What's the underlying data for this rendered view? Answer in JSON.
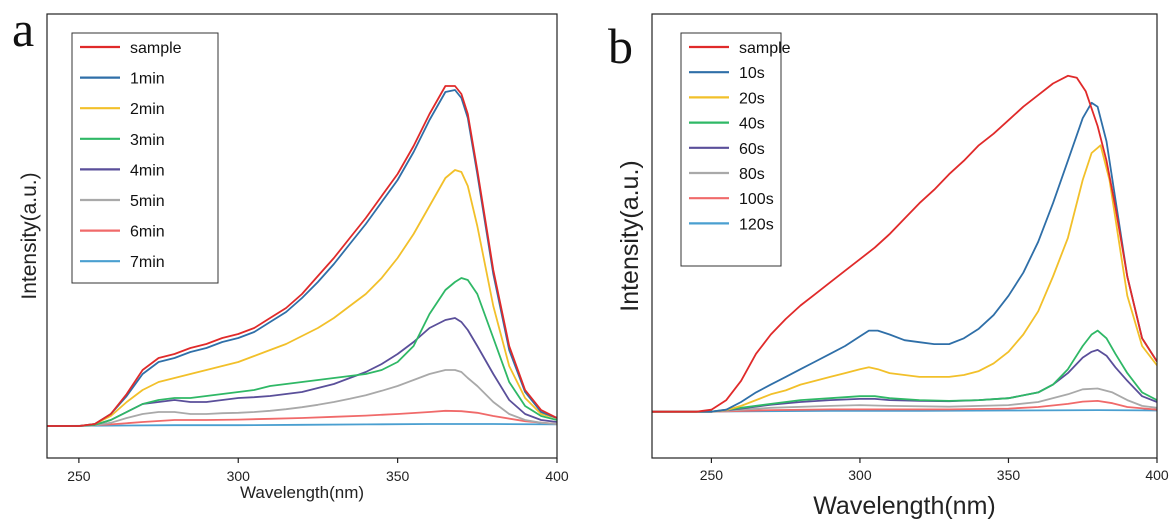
{
  "chart_data": [
    {
      "type": "line",
      "panel_label": "a",
      "xlabel": "Wavelength(nm)",
      "ylabel": "Intensity(a.u.)",
      "xlim": [
        240,
        400
      ],
      "xticks": [
        250,
        300,
        350,
        400
      ],
      "y_ticks_shown": false,
      "ylim": [
        -0.08,
        1.03
      ],
      "legend_position": "top-left",
      "series": [
        {
          "name": "sample",
          "color": "#e02a2a",
          "x": [
            240,
            250,
            255,
            260,
            265,
            270,
            275,
            280,
            285,
            290,
            295,
            300,
            305,
            310,
            315,
            320,
            325,
            330,
            335,
            340,
            345,
            350,
            355,
            360,
            365,
            368,
            370,
            372,
            375,
            380,
            385,
            390,
            395,
            400
          ],
          "y": [
            0,
            0,
            0.005,
            0.03,
            0.08,
            0.14,
            0.17,
            0.18,
            0.195,
            0.205,
            0.22,
            0.23,
            0.245,
            0.27,
            0.295,
            0.33,
            0.375,
            0.42,
            0.47,
            0.52,
            0.575,
            0.63,
            0.7,
            0.78,
            0.85,
            0.85,
            0.83,
            0.78,
            0.64,
            0.39,
            0.2,
            0.09,
            0.04,
            0.02
          ]
        },
        {
          "name": "1min",
          "color": "#2f6fa8",
          "x": [
            240,
            250,
            255,
            260,
            265,
            270,
            275,
            280,
            285,
            290,
            295,
            300,
            305,
            310,
            315,
            320,
            325,
            330,
            335,
            340,
            345,
            350,
            355,
            360,
            365,
            368,
            370,
            372,
            375,
            380,
            385,
            390,
            395,
            400
          ],
          "y": [
            0,
            0,
            0.005,
            0.03,
            0.075,
            0.13,
            0.16,
            0.17,
            0.185,
            0.195,
            0.21,
            0.22,
            0.235,
            0.26,
            0.285,
            0.32,
            0.36,
            0.405,
            0.455,
            0.505,
            0.56,
            0.615,
            0.685,
            0.765,
            0.835,
            0.84,
            0.82,
            0.77,
            0.63,
            0.38,
            0.19,
            0.085,
            0.035,
            0.02
          ]
        },
        {
          "name": "2min",
          "color": "#f2c02a",
          "x": [
            240,
            250,
            255,
            260,
            265,
            270,
            275,
            280,
            285,
            290,
            295,
            300,
            305,
            310,
            315,
            320,
            325,
            330,
            335,
            340,
            345,
            350,
            355,
            360,
            365,
            368,
            370,
            372,
            375,
            380,
            385,
            390,
            395,
            400
          ],
          "y": [
            0,
            0,
            0.005,
            0.025,
            0.06,
            0.09,
            0.11,
            0.12,
            0.13,
            0.14,
            0.15,
            0.16,
            0.175,
            0.19,
            0.205,
            0.225,
            0.245,
            0.27,
            0.3,
            0.33,
            0.37,
            0.42,
            0.48,
            0.55,
            0.62,
            0.64,
            0.635,
            0.6,
            0.5,
            0.3,
            0.15,
            0.07,
            0.03,
            0.02
          ]
        },
        {
          "name": "3min",
          "color": "#2fb866",
          "x": [
            240,
            250,
            255,
            260,
            265,
            270,
            275,
            280,
            285,
            290,
            295,
            300,
            305,
            310,
            315,
            320,
            325,
            330,
            335,
            340,
            345,
            350,
            355,
            360,
            365,
            368,
            370,
            372,
            375,
            380,
            385,
            390,
            395,
            400
          ],
          "y": [
            0,
            0,
            0.003,
            0.015,
            0.035,
            0.055,
            0.065,
            0.07,
            0.07,
            0.075,
            0.08,
            0.085,
            0.09,
            0.1,
            0.105,
            0.11,
            0.115,
            0.12,
            0.125,
            0.13,
            0.14,
            0.16,
            0.2,
            0.28,
            0.34,
            0.36,
            0.37,
            0.365,
            0.33,
            0.22,
            0.11,
            0.05,
            0.025,
            0.015
          ]
        },
        {
          "name": "4min",
          "color": "#5a4f9a",
          "x": [
            240,
            250,
            255,
            260,
            265,
            270,
            275,
            280,
            285,
            290,
            295,
            300,
            305,
            310,
            315,
            320,
            325,
            330,
            335,
            340,
            345,
            350,
            355,
            360,
            365,
            368,
            370,
            372,
            375,
            380,
            385,
            390,
            395,
            400
          ],
          "y": [
            0,
            0,
            0.003,
            0.015,
            0.035,
            0.055,
            0.06,
            0.065,
            0.06,
            0.06,
            0.065,
            0.07,
            0.072,
            0.075,
            0.08,
            0.085,
            0.095,
            0.105,
            0.12,
            0.135,
            0.155,
            0.18,
            0.21,
            0.245,
            0.265,
            0.27,
            0.26,
            0.24,
            0.2,
            0.13,
            0.065,
            0.03,
            0.015,
            0.01
          ]
        },
        {
          "name": "5min",
          "color": "#a9a9a9",
          "x": [
            240,
            250,
            255,
            260,
            265,
            270,
            275,
            280,
            285,
            290,
            295,
            300,
            305,
            310,
            315,
            320,
            325,
            330,
            335,
            340,
            345,
            350,
            355,
            360,
            365,
            368,
            370,
            372,
            375,
            380,
            385,
            390,
            395,
            400
          ],
          "y": [
            0,
            0,
            0.002,
            0.008,
            0.02,
            0.03,
            0.035,
            0.035,
            0.03,
            0.03,
            0.032,
            0.033,
            0.035,
            0.038,
            0.042,
            0.047,
            0.053,
            0.06,
            0.068,
            0.077,
            0.088,
            0.1,
            0.115,
            0.13,
            0.14,
            0.14,
            0.135,
            0.12,
            0.1,
            0.06,
            0.03,
            0.015,
            0.008,
            0.005
          ]
        },
        {
          "name": "6min",
          "color": "#f06a6a",
          "x": [
            240,
            250,
            260,
            270,
            280,
            290,
            300,
            310,
            320,
            330,
            340,
            350,
            360,
            365,
            370,
            375,
            380,
            390,
            400
          ],
          "y": [
            0,
            0,
            0.004,
            0.01,
            0.015,
            0.015,
            0.016,
            0.018,
            0.02,
            0.023,
            0.026,
            0.03,
            0.035,
            0.038,
            0.037,
            0.033,
            0.025,
            0.012,
            0.005
          ]
        },
        {
          "name": "7min",
          "color": "#4a9fd0",
          "x": [
            240,
            260,
            280,
            300,
            320,
            340,
            360,
            380,
            400
          ],
          "y": [
            0,
            0.001,
            0.002,
            0.002,
            0.003,
            0.004,
            0.005,
            0.005,
            0.004
          ]
        }
      ]
    },
    {
      "type": "line",
      "panel_label": "b",
      "xlabel": "Wavelength(nm)",
      "ylabel": "Intensity(a.u.)",
      "xlim": [
        230,
        400
      ],
      "xticks": [
        250,
        300,
        350,
        400
      ],
      "y_ticks_shown": false,
      "ylim": [
        -0.12,
        1.03
      ],
      "legend_position": "top-left",
      "series": [
        {
          "name": "sample",
          "color": "#e02a2a",
          "x": [
            230,
            245,
            250,
            255,
            260,
            265,
            270,
            275,
            280,
            285,
            290,
            295,
            300,
            305,
            310,
            315,
            320,
            325,
            330,
            335,
            340,
            345,
            350,
            355,
            360,
            365,
            370,
            373,
            376,
            380,
            383,
            386,
            390,
            395,
            400
          ],
          "y": [
            0,
            0,
            0.005,
            0.03,
            0.08,
            0.15,
            0.2,
            0.24,
            0.275,
            0.305,
            0.335,
            0.365,
            0.395,
            0.425,
            0.46,
            0.5,
            0.54,
            0.575,
            0.615,
            0.65,
            0.69,
            0.72,
            0.755,
            0.79,
            0.82,
            0.85,
            0.87,
            0.865,
            0.83,
            0.74,
            0.65,
            0.53,
            0.35,
            0.19,
            0.13
          ]
        },
        {
          "name": "10s",
          "color": "#2f6fa8",
          "x": [
            230,
            250,
            255,
            260,
            265,
            270,
            275,
            280,
            285,
            290,
            295,
            300,
            303,
            306,
            310,
            315,
            320,
            325,
            330,
            335,
            340,
            345,
            350,
            355,
            360,
            365,
            370,
            375,
            378,
            380,
            383,
            386,
            390,
            395,
            400
          ],
          "y": [
            0,
            0,
            0.005,
            0.025,
            0.05,
            0.07,
            0.09,
            0.11,
            0.13,
            0.15,
            0.17,
            0.195,
            0.21,
            0.21,
            0.2,
            0.185,
            0.18,
            0.175,
            0.175,
            0.19,
            0.215,
            0.25,
            0.3,
            0.36,
            0.44,
            0.54,
            0.65,
            0.76,
            0.8,
            0.79,
            0.7,
            0.55,
            0.35,
            0.19,
            0.13
          ]
        },
        {
          "name": "20s",
          "color": "#f2c02a",
          "x": [
            230,
            250,
            255,
            260,
            265,
            270,
            275,
            280,
            285,
            290,
            295,
            300,
            303,
            306,
            310,
            315,
            320,
            325,
            330,
            335,
            340,
            345,
            350,
            355,
            360,
            365,
            370,
            375,
            378,
            381,
            384,
            387,
            390,
            395,
            400
          ],
          "y": [
            0,
            0,
            0.004,
            0.015,
            0.03,
            0.045,
            0.055,
            0.07,
            0.08,
            0.09,
            0.1,
            0.11,
            0.115,
            0.11,
            0.1,
            0.095,
            0.09,
            0.09,
            0.09,
            0.095,
            0.105,
            0.125,
            0.155,
            0.2,
            0.26,
            0.35,
            0.45,
            0.6,
            0.67,
            0.69,
            0.6,
            0.45,
            0.3,
            0.17,
            0.12
          ]
        },
        {
          "name": "40s",
          "color": "#2fb866",
          "x": [
            230,
            250,
            260,
            270,
            280,
            290,
            300,
            305,
            310,
            320,
            330,
            340,
            350,
            360,
            365,
            370,
            375,
            378,
            380,
            383,
            386,
            390,
            395,
            400
          ],
          "y": [
            0,
            0,
            0.01,
            0.02,
            0.03,
            0.035,
            0.04,
            0.04,
            0.035,
            0.03,
            0.028,
            0.03,
            0.035,
            0.05,
            0.07,
            0.11,
            0.17,
            0.2,
            0.21,
            0.19,
            0.15,
            0.1,
            0.05,
            0.03
          ]
        },
        {
          "name": "60s",
          "color": "#5a4f9a",
          "x": [
            230,
            250,
            260,
            270,
            280,
            290,
            300,
            305,
            310,
            320,
            330,
            340,
            350,
            360,
            365,
            370,
            375,
            378,
            380,
            383,
            386,
            390,
            395,
            400
          ],
          "y": [
            0,
            0,
            0.008,
            0.018,
            0.025,
            0.03,
            0.033,
            0.033,
            0.03,
            0.028,
            0.027,
            0.03,
            0.035,
            0.05,
            0.07,
            0.1,
            0.14,
            0.155,
            0.16,
            0.145,
            0.115,
            0.08,
            0.04,
            0.025
          ]
        },
        {
          "name": "80s",
          "color": "#a9a9a9",
          "x": [
            230,
            250,
            270,
            290,
            300,
            310,
            330,
            350,
            360,
            370,
            375,
            380,
            385,
            390,
            395,
            400
          ],
          "y": [
            0,
            0,
            0.01,
            0.015,
            0.017,
            0.015,
            0.013,
            0.017,
            0.025,
            0.045,
            0.058,
            0.06,
            0.05,
            0.03,
            0.015,
            0.01
          ]
        },
        {
          "name": "100s",
          "color": "#f06a6a",
          "x": [
            230,
            250,
            270,
            290,
            310,
            330,
            350,
            360,
            370,
            375,
            380,
            385,
            390,
            400
          ],
          "y": [
            0,
            0,
            0.004,
            0.006,
            0.006,
            0.006,
            0.008,
            0.012,
            0.02,
            0.026,
            0.028,
            0.022,
            0.012,
            0.005
          ]
        },
        {
          "name": "120s",
          "color": "#4a9fd0",
          "x": [
            230,
            260,
            290,
            320,
            350,
            380,
            400
          ],
          "y": [
            0,
            0.001,
            0.002,
            0.002,
            0.003,
            0.004,
            0.003
          ]
        }
      ]
    }
  ]
}
